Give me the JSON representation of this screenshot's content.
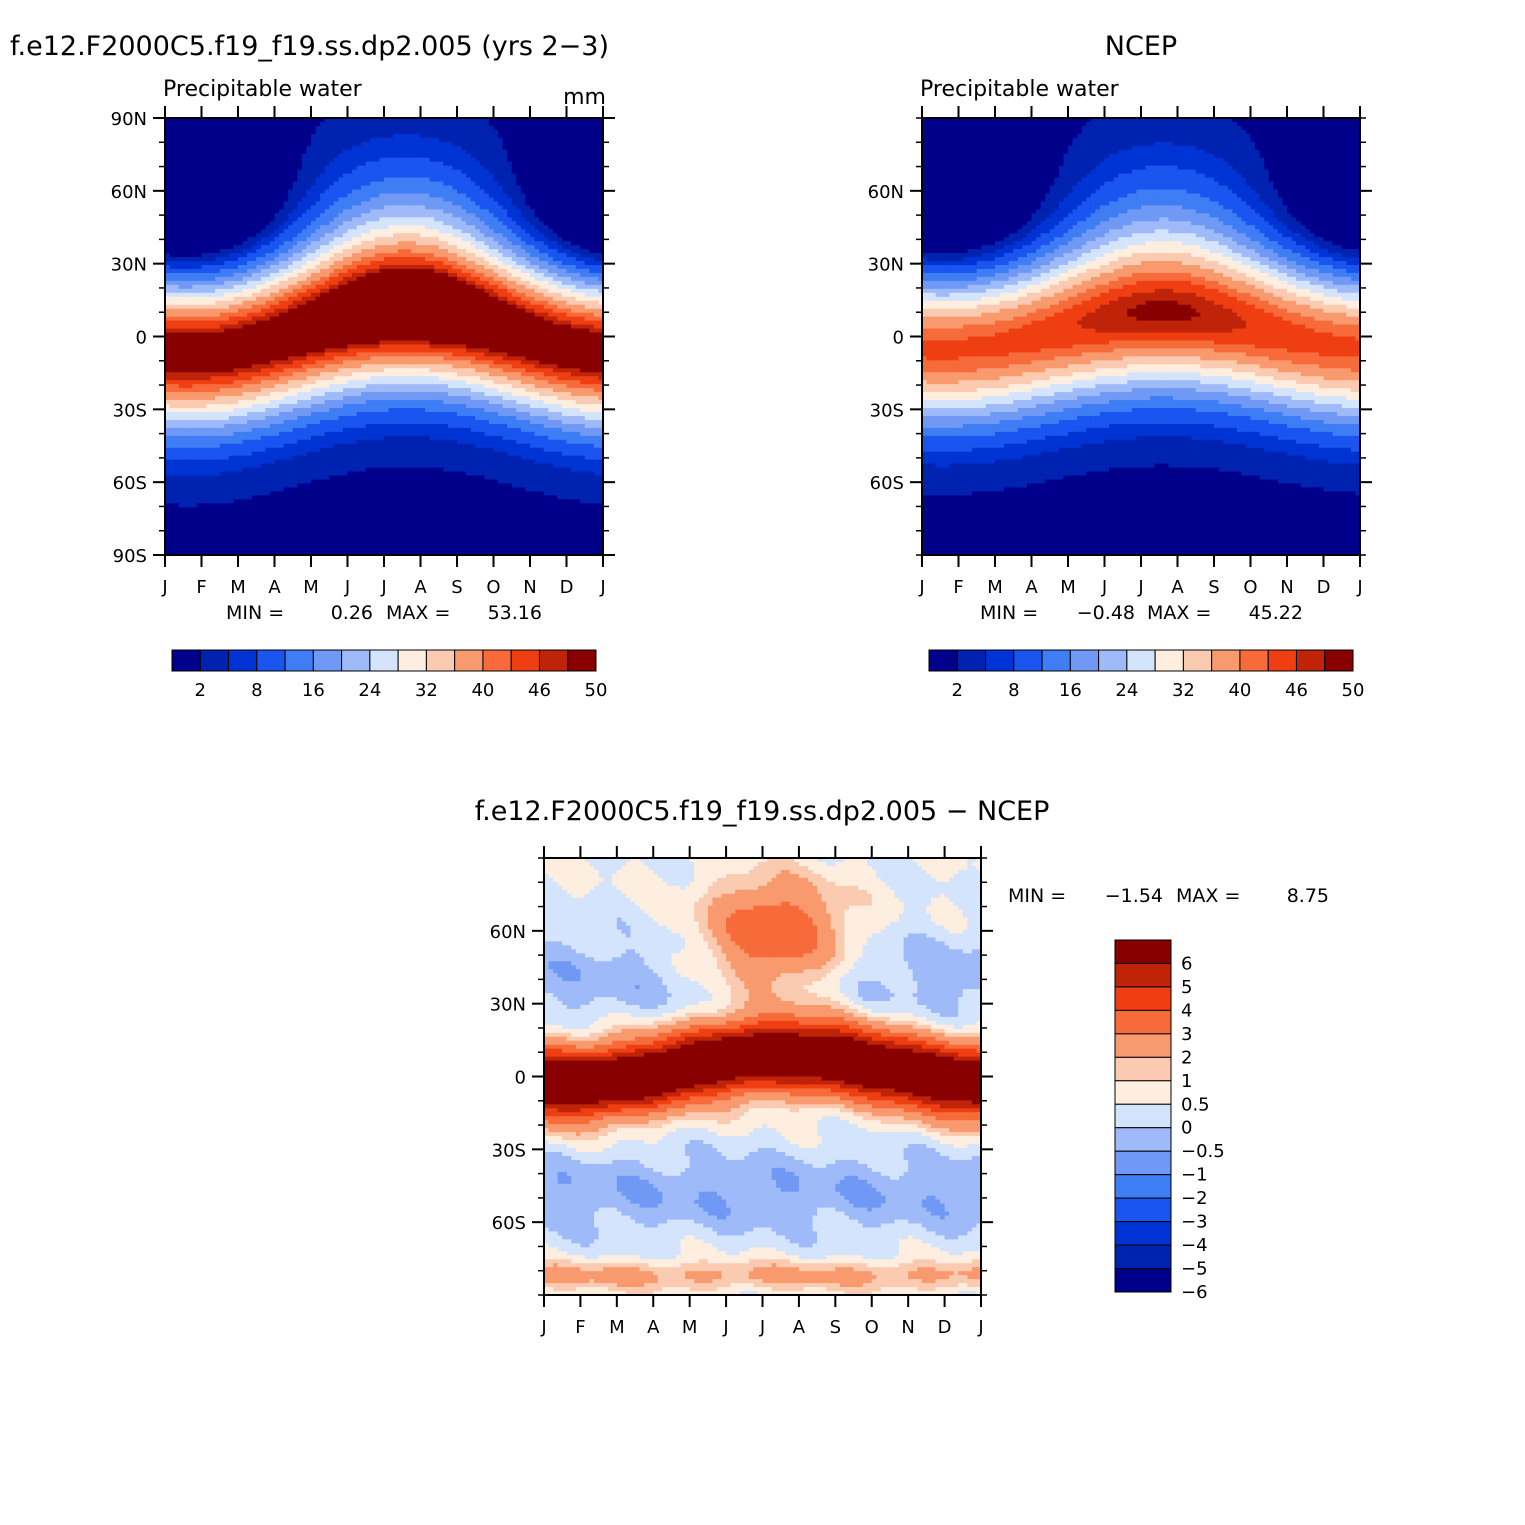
{
  "palette": [
    "#00008b",
    "#0022b0",
    "#0033d4",
    "#1a55f0",
    "#3f7df5",
    "#7099f5",
    "#9ebaf9",
    "#d4e4fc",
    "#fdeee0",
    "#fbcbb1",
    "#f99a6e",
    "#f76b3a",
    "#ee3e12",
    "#bf2308",
    "#880000"
  ],
  "chart_data": [
    {
      "type": "heatmap",
      "panel": "model",
      "title": "f.e12.F2000C5.f19_f19.ss.dp2.005 (yrs 2−3)",
      "subtitle": "Precipitable water",
      "units": "mm",
      "x_ticks": [
        "J",
        "F",
        "M",
        "A",
        "M",
        "J",
        "J",
        "A",
        "S",
        "O",
        "N",
        "D",
        "J"
      ],
      "y_ticks": [
        "90N",
        "60N",
        "30N",
        "0",
        "30S",
        "60S",
        "90S"
      ],
      "ylim": [
        -90,
        90
      ],
      "stats": {
        "min_label": "MIN =",
        "min": "0.26",
        "max_label": "MAX =",
        "max": "53.16"
      },
      "levels": [
        2,
        5,
        8,
        12,
        16,
        20,
        24,
        28,
        32,
        36,
        40,
        43,
        46,
        48,
        50
      ],
      "colorbar_labels": [
        "2",
        "8",
        "16",
        "24",
        "32",
        "40",
        "46",
        "50"
      ],
      "itcz_amp": 8,
      "itcz_shift": 0,
      "scale": 1.0
    },
    {
      "type": "heatmap",
      "panel": "obs",
      "title": "NCEP",
      "subtitle": "Precipitable water",
      "x_ticks": [
        "J",
        "F",
        "M",
        "A",
        "M",
        "J",
        "J",
        "A",
        "S",
        "O",
        "N",
        "D",
        "J"
      ],
      "y_ticks": [
        "60N",
        "30N",
        "0",
        "30S",
        "60S"
      ],
      "ylim": [
        -90,
        90
      ],
      "stats": {
        "min_label": "MIN =",
        "min": "−0.48",
        "max_label": "MAX =",
        "max": "45.22"
      },
      "levels": [
        2,
        5,
        8,
        12,
        16,
        20,
        24,
        28,
        32,
        36,
        40,
        43,
        46,
        48,
        50
      ],
      "colorbar_labels": [
        "2",
        "8",
        "16",
        "24",
        "32",
        "40",
        "46",
        "50"
      ],
      "itcz_amp": 6,
      "itcz_shift": 0,
      "scale": 0.85
    },
    {
      "type": "heatmap",
      "panel": "diff",
      "title": "f.e12.F2000C5.f19_f19.ss.dp2.005 − NCEP",
      "x_ticks": [
        "J",
        "F",
        "M",
        "A",
        "M",
        "J",
        "J",
        "A",
        "S",
        "O",
        "N",
        "D",
        "J"
      ],
      "y_ticks": [
        "60N",
        "30N",
        "0",
        "30S",
        "60S"
      ],
      "ylim": [
        -90,
        90
      ],
      "stats": {
        "min_label": "MIN =",
        "min": "−1.54",
        "max_label": "MAX =",
        "max": "8.75"
      },
      "levels": [
        -6,
        -5,
        -4,
        -3,
        -2,
        -1,
        -0.5,
        0,
        0.5,
        1,
        2,
        3,
        4,
        5,
        6
      ],
      "colorbar_labels": [
        "6",
        "5",
        "4",
        "3",
        "2",
        "1",
        "0.5",
        "0",
        "−0.5",
        "−1",
        "−2",
        "−3",
        "−4",
        "−5",
        "−6"
      ]
    }
  ]
}
